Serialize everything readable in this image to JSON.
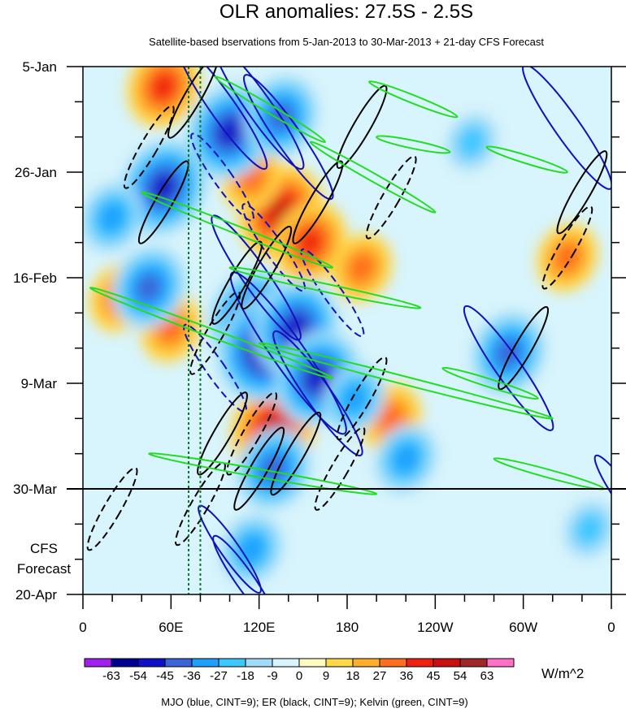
{
  "chart_data": {
    "type": "heatmap",
    "title": "OLR anomalies: 27.5S - 2.5S",
    "subtitle": "Satellite-based bservations from 5-Jan-2013 to 30-Mar-2013 + 21-day CFS Forecast",
    "x_tick_labels": [
      "0",
      "60E",
      "120E",
      "180",
      "120W",
      "60W",
      "0"
    ],
    "x_tick_values_deg_east": [
      0,
      60,
      120,
      180,
      240,
      300,
      360
    ],
    "xlim": [
      0,
      360
    ],
    "y_tick_labels": [
      "5-Jan",
      "26-Jan",
      "16-Feb",
      "9-Mar",
      "30-Mar",
      "20-Apr"
    ],
    "y_tick_values_days": [
      0,
      21,
      42,
      63,
      84,
      105
    ],
    "ylim_days": [
      0,
      105
    ],
    "forecast_start_day": 84,
    "forecast_label_lines": [
      "CFS",
      "Forecast"
    ],
    "mjo_phase_lines_lon": [
      72,
      80
    ],
    "colorbar": {
      "levels": [
        -63,
        -54,
        -45,
        -36,
        -27,
        -18,
        -9,
        0,
        9,
        18,
        27,
        36,
        45,
        54,
        63
      ],
      "tick_labels": [
        "-63",
        "-54",
        "-45",
        "-36",
        "-27",
        "-18",
        "-9",
        "0",
        "9",
        "18",
        "27",
        "36",
        "45",
        "54",
        "63"
      ],
      "colors": [
        "#a020f0",
        "#000090",
        "#1010c8",
        "#3a64d8",
        "#1ea0ff",
        "#3cc8ff",
        "#a0dcf8",
        "#d8f4fc",
        "#fffcc0",
        "#ffd84a",
        "#ffae2c",
        "#ff6e1c",
        "#f02010",
        "#c81010",
        "#a02828",
        "#ff70c8"
      ],
      "units": "W/m^2"
    },
    "contour_note": "MJO (blue, CINT=9); ER (black, CINT=9); Kelvin (green, CINT=9)",
    "anomaly_features": [
      {
        "lon": 135,
        "day": 29,
        "value": 45
      },
      {
        "lon": 155,
        "day": 35,
        "value": 36
      },
      {
        "lon": 190,
        "day": 40,
        "value": 27
      },
      {
        "lon": 115,
        "day": 22,
        "value": 27
      },
      {
        "lon": 130,
        "day": 72,
        "value": 45
      },
      {
        "lon": 55,
        "day": 4,
        "value": 36
      },
      {
        "lon": 25,
        "day": 46,
        "value": 27
      },
      {
        "lon": 60,
        "day": 52,
        "value": 27
      },
      {
        "lon": 210,
        "day": 70,
        "value": 27
      },
      {
        "lon": 330,
        "day": 38,
        "value": 27
      },
      {
        "lon": 115,
        "day": 50,
        "value": -45
      },
      {
        "lon": 125,
        "day": 56,
        "value": -54
      },
      {
        "lon": 145,
        "day": 52,
        "value": -45
      },
      {
        "lon": 160,
        "day": 62,
        "value": -45
      },
      {
        "lon": 100,
        "day": 13,
        "value": -45
      },
      {
        "lon": 135,
        "day": 10,
        "value": -36
      },
      {
        "lon": 55,
        "day": 24,
        "value": -45
      },
      {
        "lon": 45,
        "day": 44,
        "value": -36
      },
      {
        "lon": 185,
        "day": 66,
        "value": -27
      },
      {
        "lon": 290,
        "day": 57,
        "value": -36
      },
      {
        "lon": 220,
        "day": 78,
        "value": -27
      },
      {
        "lon": 130,
        "day": 80,
        "value": -36
      },
      {
        "lon": 115,
        "day": 96,
        "value": -27
      },
      {
        "lon": 20,
        "day": 30,
        "value": -27
      },
      {
        "lon": 265,
        "day": 15,
        "value": -18
      },
      {
        "lon": 345,
        "day": 92,
        "value": -18
      }
    ],
    "mjo_contours": [
      {
        "lon": 118,
        "day": 42,
        "value": -18
      },
      {
        "lon": 140,
        "day": 57,
        "value": -27
      },
      {
        "lon": 160,
        "day": 65,
        "value": -18
      },
      {
        "lon": 120,
        "day": 8,
        "value": -18
      },
      {
        "lon": 140,
        "day": 14,
        "value": -18
      },
      {
        "lon": 95,
        "day": 8,
        "value": -18
      },
      {
        "lon": 330,
        "day": 12,
        "value": -18
      },
      {
        "lon": 290,
        "day": 60,
        "value": -18
      },
      {
        "lon": 100,
        "day": 96,
        "value": -9
      },
      {
        "lon": 110,
        "day": 102,
        "value": -9
      },
      {
        "lon": 370,
        "day": 86,
        "value": -9
      },
      {
        "lon": 90,
        "day": 60,
        "value": 9
      },
      {
        "lon": 130,
        "day": 36,
        "value": 9
      },
      {
        "lon": 170,
        "day": 45,
        "value": 9
      },
      {
        "lon": 95,
        "day": 22,
        "value": 9
      }
    ],
    "er_contours": [
      {
        "lon": 55,
        "day": 27,
        "value": 9
      },
      {
        "lon": 75,
        "day": 6,
        "value": 9
      },
      {
        "lon": 105,
        "day": 43,
        "value": 9
      },
      {
        "lon": 125,
        "day": 40,
        "value": 9
      },
      {
        "lon": 160,
        "day": 27,
        "value": 9
      },
      {
        "lon": 145,
        "day": 77,
        "value": 9
      },
      {
        "lon": 120,
        "day": 80,
        "value": 9
      },
      {
        "lon": 95,
        "day": 73,
        "value": 9
      },
      {
        "lon": 300,
        "day": 56,
        "value": 9
      },
      {
        "lon": 340,
        "day": 25,
        "value": 9
      },
      {
        "lon": 190,
        "day": 12,
        "value": 9
      },
      {
        "lon": 210,
        "day": 26,
        "value": -9
      },
      {
        "lon": 90,
        "day": 53,
        "value": -9
      },
      {
        "lon": 80,
        "day": 87,
        "value": -9
      },
      {
        "lon": 20,
        "day": 88,
        "value": -9
      },
      {
        "lon": 330,
        "day": 36,
        "value": -9
      },
      {
        "lon": 190,
        "day": 66,
        "value": -9
      },
      {
        "lon": 45,
        "day": 16,
        "value": -9
      },
      {
        "lon": 115,
        "day": 73,
        "value": -9
      },
      {
        "lon": 175,
        "day": 80,
        "value": -9
      }
    ],
    "kelvin_contours": [
      {
        "lon_start": 90,
        "day_start": 2,
        "lon_end": 165,
        "day_end": 15
      },
      {
        "lon_start": 155,
        "day_start": 15,
        "lon_end": 240,
        "day_end": 29
      },
      {
        "lon_start": 40,
        "day_start": 25,
        "lon_end": 170,
        "day_end": 40
      },
      {
        "lon_start": 5,
        "day_start": 44,
        "lon_end": 170,
        "day_end": 62
      },
      {
        "lon_start": 100,
        "day_start": 40,
        "lon_end": 230,
        "day_end": 48
      },
      {
        "lon_start": 120,
        "day_start": 55,
        "lon_end": 320,
        "day_end": 70
      },
      {
        "lon_start": 245,
        "day_start": 60,
        "lon_end": 310,
        "day_end": 66
      },
      {
        "lon_start": 45,
        "day_start": 77,
        "lon_end": 200,
        "day_end": 85
      },
      {
        "lon_start": 195,
        "day_start": 3,
        "lon_end": 255,
        "day_end": 10
      },
      {
        "lon_start": 275,
        "day_start": 16,
        "lon_end": 330,
        "day_end": 21
      },
      {
        "lon_start": 280,
        "day_start": 78,
        "lon_end": 355,
        "day_end": 84
      },
      {
        "lon_start": 200,
        "day_start": 14,
        "lon_end": 250,
        "day_end": 17
      }
    ]
  }
}
